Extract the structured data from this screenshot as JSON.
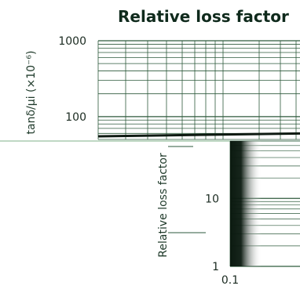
{
  "colors": {
    "grid": "#2e5a3c",
    "curve": "#0e1a12",
    "divider": "#7fb08a",
    "text": "#1a2a20",
    "title": "#0f2a1c"
  },
  "chart_data": [
    {
      "type": "line",
      "title": "Relative loss factor",
      "ylabel": "tanδ/μi (×10⁻⁶)",
      "yscale": "log",
      "ylim": [
        50,
        1000
      ],
      "yticks": [
        "1000",
        "100"
      ],
      "grid": true,
      "series": [
        {
          "x": [
            0,
            1
          ],
          "values": [
            55,
            60
          ]
        }
      ]
    },
    {
      "type": "area",
      "title": "",
      "ylabel": "Relative loss factor",
      "yscale": "log",
      "xscale": "log",
      "ylim": [
        1,
        70
      ],
      "xlim": [
        0.1,
        1
      ],
      "yticks": [
        "10",
        "1"
      ],
      "xticks": [
        "0.1"
      ],
      "grid": true
    }
  ]
}
